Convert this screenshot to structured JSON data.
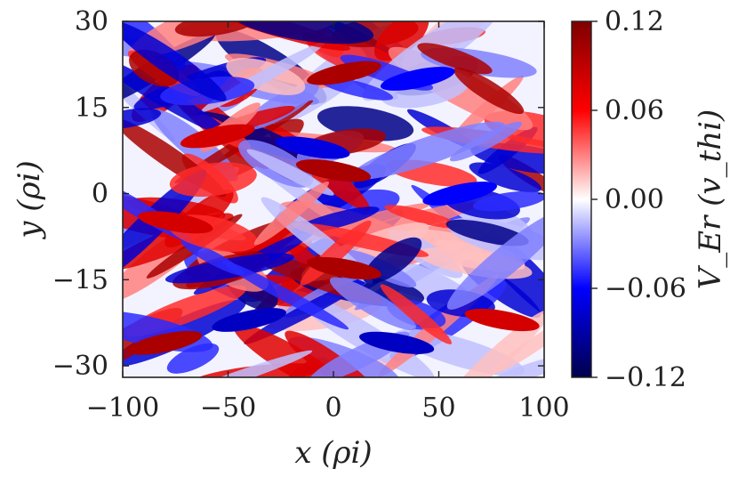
{
  "chart_data": {
    "type": "heatmap",
    "xlabel": "x (ρi)",
    "ylabel": "y (ρi)",
    "colorbar_label": "V_Er (v_thi)",
    "xlim": [
      -100,
      100
    ],
    "ylim": [
      -32,
      30
    ],
    "x_ticks": [
      -100,
      -50,
      0,
      50,
      100
    ],
    "x_tick_labels": [
      "−100",
      "−50",
      "0",
      "50",
      "100"
    ],
    "y_ticks": [
      30,
      15,
      0,
      -15,
      -30
    ],
    "y_tick_labels": [
      "30",
      "15",
      "0",
      "−15",
      "−30"
    ],
    "colorbar_range": [
      -0.12,
      0.12
    ],
    "colorbar_ticks": [
      0.12,
      0.06,
      0.0,
      -0.06,
      -0.12
    ],
    "colorbar_tick_labels": [
      "0.12",
      "0.06",
      "0.00",
      "−0.06",
      "−0.12"
    ],
    "colormap": "seismic",
    "colormap_stops": [
      "#00004c",
      "#0000ff",
      "#ffffff",
      "#ff0000",
      "#7f0000"
    ],
    "grid": false,
    "features": [
      {
        "x": 0,
        "y": 4,
        "value": 0.1
      },
      {
        "x": 5,
        "y": 21,
        "value": 0.1
      },
      {
        "x": 5,
        "y": -13,
        "value": 0.1
      },
      {
        "x": -80,
        "y": -26,
        "value": 0.1
      },
      {
        "x": -75,
        "y": -5,
        "value": 0.08
      },
      {
        "x": -55,
        "y": 10,
        "value": 0.08
      },
      {
        "x": 80,
        "y": -22,
        "value": 0.08
      },
      {
        "x": -40,
        "y": -22,
        "value": -0.08
      },
      {
        "x": 30,
        "y": -26,
        "value": -0.08
      },
      {
        "x": 60,
        "y": 0,
        "value": -0.06
      },
      {
        "x": -10,
        "y": 8,
        "value": -0.07
      },
      {
        "x": 40,
        "y": 20,
        "value": -0.06
      }
    ]
  }
}
